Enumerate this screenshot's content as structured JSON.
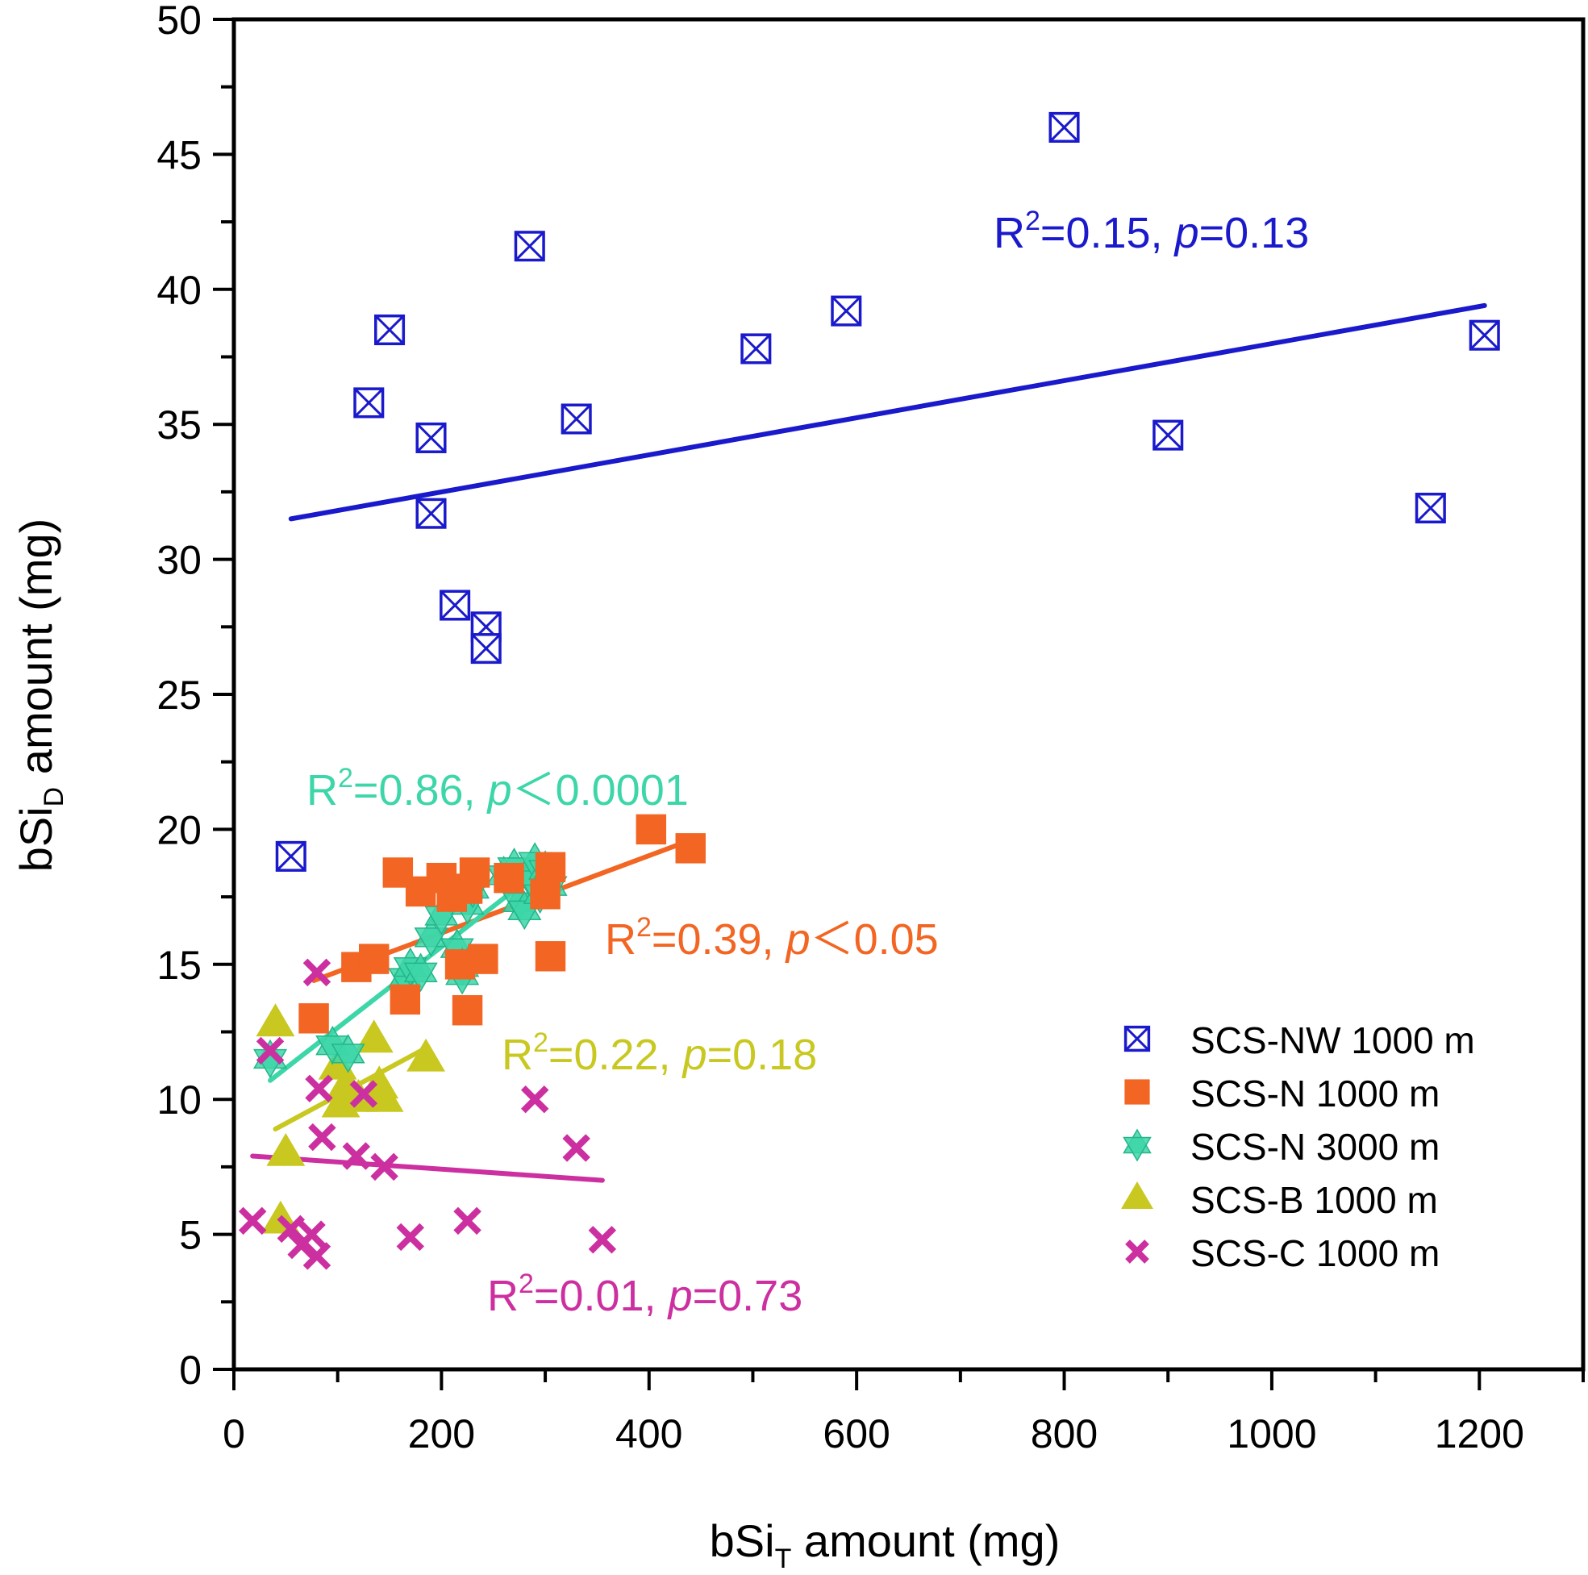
{
  "chart_data": {
    "type": "scatter",
    "xlabel": {
      "prefix": "bSi",
      "sub": "T",
      "suffix": " amount (mg)"
    },
    "ylabel": {
      "prefix": "bSi",
      "sub": "D",
      "suffix": " amount (mg)"
    },
    "xlim": [
      0,
      1300
    ],
    "ylim": [
      0,
      50
    ],
    "xticks": [
      0,
      200,
      400,
      600,
      800,
      1000,
      1200
    ],
    "yticks": [
      0,
      5,
      10,
      15,
      20,
      25,
      30,
      35,
      40,
      45,
      50
    ],
    "xtick_labels": [
      "0",
      "200",
      "400",
      "600",
      "800",
      "1000",
      "1200"
    ],
    "ytick_labels": [
      "0",
      "5",
      "10",
      "15",
      "20",
      "25",
      "30",
      "35",
      "40",
      "45",
      "50"
    ],
    "x_minor_step": 100,
    "y_minor_step": 2.5,
    "grid": false,
    "legend_position": "right",
    "series": [
      {
        "name": "SCS-NW 1000 m",
        "marker": "boxed-x",
        "color": "#1a1acc",
        "points": [
          [
            55,
            19
          ],
          [
            130,
            35.8
          ],
          [
            150,
            38.5
          ],
          [
            190,
            34.5
          ],
          [
            190,
            31.7
          ],
          [
            213,
            28.3
          ],
          [
            243,
            27.5
          ],
          [
            243,
            26.7
          ],
          [
            285,
            41.6
          ],
          [
            330,
            35.2
          ],
          [
            503,
            37.8
          ],
          [
            590,
            39.2
          ],
          [
            800,
            46
          ],
          [
            900,
            34.6
          ],
          [
            1153,
            31.9
          ],
          [
            1205,
            38.3
          ]
        ],
        "fit": [
          [
            55,
            31.5
          ],
          [
            1205,
            39.4
          ]
        ]
      },
      {
        "name": "SCS-N 1000 m",
        "marker": "square",
        "color": "#f26522",
        "points": [
          [
            77,
            13
          ],
          [
            118,
            14.9
          ],
          [
            135,
            15.2
          ],
          [
            158,
            18.4
          ],
          [
            165,
            13.7
          ],
          [
            180,
            17.7
          ],
          [
            200,
            18.2
          ],
          [
            210,
            17.5
          ],
          [
            218,
            15
          ],
          [
            225,
            13.3
          ],
          [
            225,
            17.8
          ],
          [
            232,
            18.4
          ],
          [
            240,
            15.2
          ],
          [
            265,
            18.2
          ],
          [
            300,
            17.6
          ],
          [
            305,
            18.6
          ],
          [
            305,
            15.3
          ],
          [
            402,
            20
          ],
          [
            440,
            19.3
          ]
        ],
        "fit": [
          [
            77,
            14.4
          ],
          [
            440,
            19.6
          ]
        ]
      },
      {
        "name": "SCS-N 3000 m",
        "marker": "star",
        "color": "#3dd6a8",
        "points": [
          [
            35,
            11.5
          ],
          [
            95,
            12
          ],
          [
            110,
            11.7
          ],
          [
            165,
            14.5
          ],
          [
            170,
            14.9
          ],
          [
            180,
            14.7
          ],
          [
            190,
            16
          ],
          [
            200,
            16.8
          ],
          [
            215,
            15.6
          ],
          [
            220,
            14.9
          ],
          [
            220,
            14.6
          ],
          [
            225,
            17.2
          ],
          [
            230,
            17.8
          ],
          [
            260,
            18.3
          ],
          [
            270,
            18.6
          ],
          [
            275,
            17.3
          ],
          [
            280,
            17
          ],
          [
            285,
            18.2
          ],
          [
            290,
            18.8
          ],
          [
            295,
            17.6
          ],
          [
            300,
            18.5
          ],
          [
            305,
            17.9
          ]
        ],
        "fit": [
          [
            35,
            10.7
          ],
          [
            295,
            18.5
          ]
        ]
      },
      {
        "name": "SCS-B 1000 m",
        "marker": "triangle",
        "color": "#c8c820",
        "points": [
          [
            40,
            12.8
          ],
          [
            45,
            5.5
          ],
          [
            50,
            8
          ],
          [
            100,
            11.2
          ],
          [
            103,
            9.8
          ],
          [
            108,
            10.5
          ],
          [
            120,
            10
          ],
          [
            135,
            12.2
          ],
          [
            140,
            10.5
          ],
          [
            145,
            10
          ],
          [
            185,
            11.5
          ]
        ],
        "fit": [
          [
            40,
            8.9
          ],
          [
            185,
            11.9
          ]
        ]
      },
      {
        "name": "SCS-C 1000 m",
        "marker": "x",
        "color": "#cc2fa0",
        "points": [
          [
            18,
            5.5
          ],
          [
            35,
            11.8
          ],
          [
            55,
            5.2
          ],
          [
            65,
            4.6
          ],
          [
            75,
            5
          ],
          [
            80,
            4.2
          ],
          [
            80,
            14.7
          ],
          [
            82,
            10.4
          ],
          [
            85,
            8.6
          ],
          [
            118,
            7.9
          ],
          [
            125,
            10.2
          ],
          [
            145,
            7.5
          ],
          [
            170,
            4.9
          ],
          [
            225,
            5.5
          ],
          [
            290,
            10
          ],
          [
            330,
            8.2
          ],
          [
            355,
            4.8
          ]
        ],
        "fit": [
          [
            18,
            7.9
          ],
          [
            355,
            7
          ]
        ]
      }
    ],
    "annotations": [
      {
        "series": "SCS-NW 1000 m",
        "r2": "=0.15, ",
        "p_rest": "=0.13",
        "color": "#1a1acc"
      },
      {
        "series": "SCS-N 3000 m",
        "r2": "=0.86, ",
        "p_rest": "＜0.0001",
        "color": "#3dd6a8"
      },
      {
        "series": "SCS-N 1000 m",
        "r2": "=0.39, ",
        "p_rest": "＜0.05",
        "color": "#f26522"
      },
      {
        "series": "SCS-B 1000 m",
        "r2": "=0.22, ",
        "p_rest": "=0.18",
        "color": "#c8c820"
      },
      {
        "series": "SCS-C 1000 m",
        "r2": "=0.01, ",
        "p_rest": "=0.73",
        "color": "#cc2fa0"
      }
    ],
    "annotation_text": {
      "r": "R",
      "sup": "2",
      "p": "p"
    }
  }
}
